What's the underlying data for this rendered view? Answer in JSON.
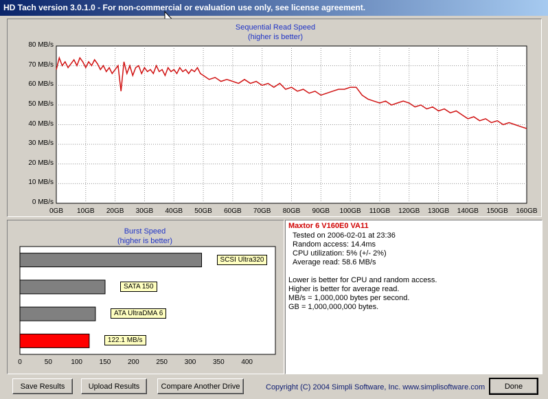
{
  "window": {
    "title": "HD Tach version 3.0.1.0  - For non-commercial or evaluation use only, see license agreement."
  },
  "seq_chart": {
    "title": "Sequential Read Speed",
    "subtitle": "(higher is better)",
    "line_color": "#d01010"
  },
  "burst_chart": {
    "title": "Burst Speed",
    "subtitle": "(higher is better)",
    "current_color": "#ff0000",
    "ref_color": "#808080"
  },
  "chart_data": [
    {
      "type": "line",
      "title": "Sequential Read Speed",
      "subtitle": "(higher is better)",
      "xlim": [
        0,
        160
      ],
      "ylim": [
        0,
        80
      ],
      "x_ticks": [
        "0GB",
        "10GB",
        "20GB",
        "30GB",
        "40GB",
        "50GB",
        "60GB",
        "70GB",
        "80GB",
        "90GB",
        "100GB",
        "110GB",
        "120GB",
        "130GB",
        "140GB",
        "150GB",
        "160GB"
      ],
      "y_ticks": [
        "0 MB/s",
        "10 MB/s",
        "20 MB/s",
        "30 MB/s",
        "40 MB/s",
        "50 MB/s",
        "60 MB/s",
        "70 MB/s",
        "80 MB/s"
      ],
      "grid": true,
      "series": [
        {
          "x": [
            0,
            1,
            2,
            3,
            4,
            5,
            6,
            7,
            8,
            9,
            10,
            11,
            12,
            13,
            14,
            15,
            16,
            17,
            18,
            19,
            20,
            21,
            22,
            23,
            24,
            25,
            26,
            27,
            28,
            29,
            30,
            31,
            32,
            33,
            34,
            35,
            36,
            37,
            38,
            39,
            40,
            41,
            42,
            43,
            44,
            45,
            46,
            47,
            48,
            49,
            50,
            52,
            54,
            56,
            58,
            60,
            62,
            64,
            66,
            68,
            70,
            72,
            74,
            76,
            78,
            80,
            82,
            84,
            86,
            88,
            90,
            92,
            94,
            96,
            98,
            100,
            102,
            104,
            106,
            108,
            110,
            112,
            114,
            116,
            118,
            120,
            122,
            124,
            126,
            128,
            130,
            132,
            134,
            136,
            138,
            140,
            142,
            144,
            146,
            148,
            150,
            152,
            154,
            156,
            158,
            160
          ],
          "values": [
            68,
            74,
            70,
            72,
            69,
            71,
            73,
            70,
            74,
            72,
            69,
            72,
            70,
            73,
            71,
            68,
            70,
            67,
            69,
            66,
            68,
            70,
            57,
            72,
            66,
            70,
            65,
            69,
            70,
            66,
            69,
            67,
            68,
            66,
            70,
            67,
            68,
            65,
            69,
            67,
            68,
            66,
            69,
            67,
            68,
            66,
            68,
            67,
            69,
            66,
            65,
            63,
            64,
            62,
            63,
            62,
            61,
            63,
            61,
            62,
            60,
            61,
            59,
            61,
            58,
            59,
            57,
            58,
            56,
            57,
            55,
            56,
            57,
            58,
            58,
            59,
            59,
            55,
            53,
            52,
            51,
            52,
            50,
            51,
            52,
            51,
            49,
            50,
            48,
            49,
            47,
            48,
            46,
            47,
            45,
            43,
            44,
            42,
            43,
            41,
            42,
            40,
            41,
            40,
            39,
            38
          ]
        }
      ]
    },
    {
      "type": "bar",
      "orientation": "horizontal",
      "title": "Burst Speed",
      "subtitle": "(higher is better)",
      "xlim": [
        0,
        450
      ],
      "x_ticks": [
        "0",
        "50",
        "100",
        "150",
        "200",
        "250",
        "300",
        "350",
        "400"
      ],
      "categories": [
        "SCSI Ultra320",
        "SATA 150",
        "ATA UltraDMA 6",
        "122.1 MB/s"
      ],
      "values": [
        320,
        150,
        133,
        122.1
      ]
    }
  ],
  "info": {
    "drive": "Maxtor 6 V160E0 VA11",
    "tested": "Tested on 2006-02-01 at 23:36",
    "random": "Random access: 14.4ms",
    "cpu": "CPU utilization: 5% (+/- 2%)",
    "avg": "Average read: 58.6 MB/s",
    "note1": "Lower is better for CPU and random access.",
    "note2": "Higher is better for average read.",
    "note3": "MB/s = 1,000,000 bytes per second.",
    "note4": "GB = 1,000,000,000 bytes."
  },
  "buttons": {
    "save": "Save Results",
    "upload": "Upload Results",
    "compare": "Compare Another Drive",
    "done": "Done"
  },
  "footer": {
    "copyright": "Copyright (C) 2004 Simpli Software, Inc. www.simplisoftware.com"
  }
}
